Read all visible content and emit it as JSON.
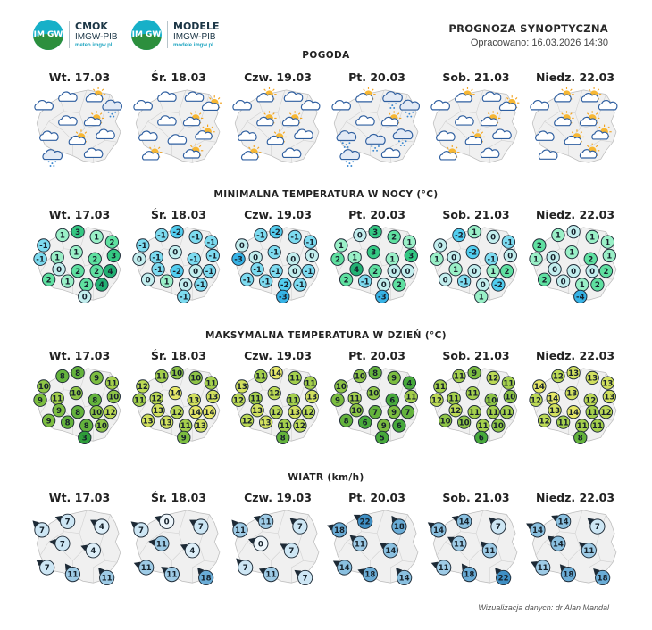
{
  "header": {
    "logo1": {
      "name": "CMOK",
      "sub": "IMGW-PIB",
      "url": "meteo.imgw.pl",
      "badge": "IM GW"
    },
    "logo2": {
      "name": "MODELE",
      "sub": "IMGW-PIB",
      "url": "modele.imgw.pl",
      "badge": "IM GW"
    },
    "title": "PROGNOZA SYNOPTYCZNA",
    "date": "Opracowano: 16.03.2026 14:30"
  },
  "days": [
    "Wt. 17.03",
    "Śr. 18.03",
    "Czw. 19.03",
    "Pt. 20.03",
    "Sob. 21.03",
    "Niedz. 22.03"
  ],
  "sections": {
    "weather": "POGODA",
    "tmin": "MINIMALNA TEMPERATURA W NOCY (°C)",
    "tmax": "MAKSYMALNA TEMPERATURA W DZIEŃ (°C)",
    "wind": "WIATR (km/h)"
  },
  "weather_icons": [
    [
      "cloud",
      "cloud",
      "sun-cloud",
      "cloud-rain",
      "cloud",
      "sun-cloud",
      "cloud",
      "sun-cloud",
      "cloud",
      "cloud-rain",
      "cloud"
    ],
    [
      "cloud",
      "cloud",
      "cloud",
      "sun-cloud",
      "cloud",
      "sun-cloud",
      "cloud",
      "cloud",
      "sun-cloud",
      "sun-cloud",
      "sun-cloud"
    ],
    [
      "cloud",
      "sun-cloud",
      "cloud",
      "cloud",
      "sun-cloud",
      "sun-cloud",
      "cloud",
      "sun-cloud",
      "cloud",
      "sun-cloud",
      "cloud"
    ],
    [
      "cloud",
      "sun-cloud",
      "cloud-rain",
      "cloud-rain",
      "cloud",
      "sun-cloud",
      "cloud-rain",
      "cloud-rain",
      "cloud-rain",
      "cloud-rain",
      "cloud"
    ],
    [
      "cloud",
      "sun-cloud",
      "cloud",
      "sun-cloud",
      "cloud",
      "sun-cloud",
      "cloud",
      "sun-cloud",
      "cloud",
      "sun-cloud",
      "cloud"
    ],
    [
      "cloud",
      "sun-cloud",
      "sun-cloud",
      "cloud",
      "sun-cloud",
      "sun-cloud",
      "cloud",
      "sun-cloud",
      "sun-cloud",
      "cloud",
      "sun-cloud"
    ]
  ],
  "tmin": [
    [
      -1,
      1,
      3,
      1,
      2,
      3,
      -1,
      1,
      1,
      2,
      0,
      2,
      2,
      4,
      2,
      1,
      2,
      4,
      0
    ],
    [
      -1,
      -1,
      -2,
      -1,
      -1,
      -1,
      0,
      -1,
      0,
      -1,
      -1,
      -2,
      0,
      -1,
      0,
      1,
      0,
      -1,
      -1
    ],
    [
      0,
      -1,
      -2,
      -1,
      -1,
      0,
      -3,
      0,
      -1,
      0,
      -1,
      -1,
      0,
      -1,
      -1,
      -1,
      -2,
      -1,
      -3
    ],
    [
      1,
      0,
      3,
      2,
      1,
      3,
      2,
      1,
      3,
      1,
      4,
      2,
      0,
      0,
      2,
      -1,
      0,
      2,
      -3
    ],
    [
      0,
      -2,
      1,
      0,
      -1,
      0,
      1,
      0,
      -2,
      -1,
      1,
      0,
      1,
      2,
      0,
      -1,
      0,
      -2,
      1
    ],
    [
      2,
      1,
      0,
      1,
      1,
      1,
      1,
      0,
      1,
      2,
      0,
      0,
      0,
      2,
      2,
      0,
      1,
      2,
      -4
    ]
  ],
  "tmax": [
    [
      10,
      8,
      8,
      9,
      11,
      10,
      9,
      11,
      10,
      8,
      9,
      8,
      10,
      12,
      9,
      8,
      8,
      10,
      3
    ],
    [
      12,
      11,
      10,
      10,
      11,
      13,
      11,
      12,
      14,
      13,
      13,
      12,
      14,
      14,
      13,
      13,
      11,
      13,
      9
    ],
    [
      13,
      11,
      14,
      11,
      11,
      13,
      12,
      11,
      12,
      11,
      13,
      12,
      13,
      12,
      12,
      13,
      11,
      12,
      8
    ],
    [
      10,
      10,
      8,
      9,
      4,
      11,
      9,
      11,
      10,
      6,
      10,
      7,
      9,
      7,
      8,
      6,
      9,
      6,
      5
    ],
    [
      11,
      11,
      9,
      12,
      11,
      10,
      12,
      11,
      11,
      10,
      12,
      11,
      11,
      11,
      10,
      10,
      11,
      10,
      6
    ],
    [
      14,
      12,
      13,
      13,
      13,
      13,
      12,
      14,
      13,
      12,
      13,
      14,
      11,
      12,
      12,
      11,
      11,
      11,
      8
    ]
  ],
  "wind": [
    [
      7,
      7,
      4,
      7,
      4,
      7,
      11,
      11
    ],
    [
      7,
      0,
      7,
      11,
      4,
      11,
      11,
      18
    ],
    [
      11,
      11,
      7,
      0,
      7,
      7,
      11,
      7
    ],
    [
      18,
      22,
      18,
      11,
      14,
      14,
      18,
      14
    ],
    [
      14,
      14,
      7,
      11,
      11,
      11,
      18,
      22
    ],
    [
      14,
      14,
      7,
      14,
      11,
      11,
      18,
      18
    ]
  ],
  "credit": "Wizualizacja danych: dr Alan Mandal"
}
